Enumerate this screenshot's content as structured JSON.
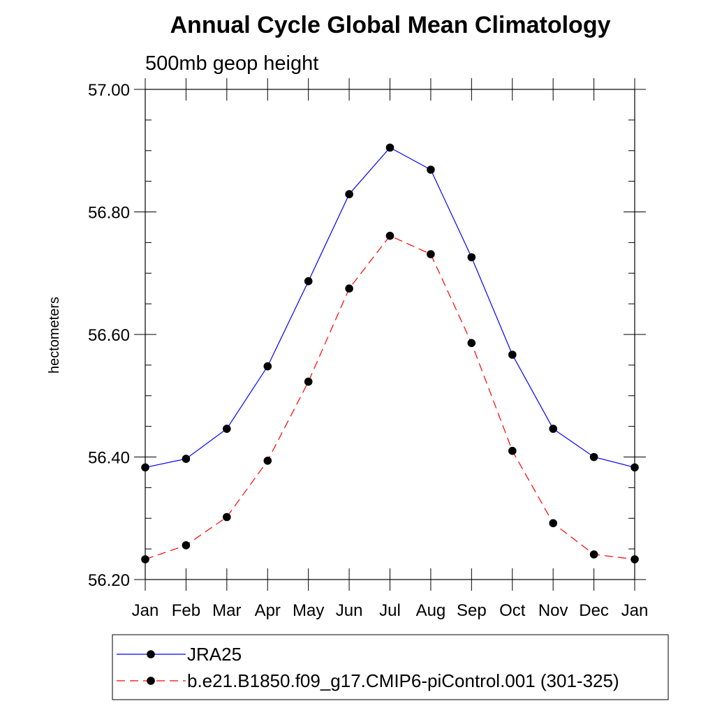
{
  "chart_data": {
    "type": "line",
    "title": "Annual Cycle Global Mean Climatology",
    "subtitle": "500mb geop height",
    "ylabel": "hectometers",
    "xlabel": "",
    "categories": [
      "Jan",
      "Feb",
      "Mar",
      "Apr",
      "May",
      "Jun",
      "Jul",
      "Aug",
      "Sep",
      "Oct",
      "Nov",
      "Dec",
      "Jan"
    ],
    "ylim": [
      56.2,
      57.0
    ],
    "yticks": [
      56.2,
      56.4,
      56.6,
      56.8,
      57.0
    ],
    "ytick_labels": [
      "56.20",
      "56.40",
      "56.60",
      "56.80",
      "57.00"
    ],
    "y_minor_step": 0.05,
    "legend_position": "bottom",
    "series": [
      {
        "name": "JRA25",
        "color": "#0000ff",
        "line_style": "solid",
        "marker": "filled-circle",
        "values": [
          56.383,
          56.397,
          56.446,
          56.548,
          56.687,
          56.829,
          56.905,
          56.869,
          56.726,
          56.567,
          56.446,
          56.4,
          56.383
        ]
      },
      {
        "name": "b.e21.B1850.f09_g17.CMIP6-piControl.001 (301-325)",
        "color": "#ff0000",
        "line_style": "dashed",
        "marker": "filled-circle",
        "values": [
          56.233,
          56.256,
          56.302,
          56.394,
          56.523,
          56.675,
          56.761,
          56.731,
          56.586,
          56.41,
          56.292,
          56.241,
          56.233
        ]
      }
    ]
  }
}
